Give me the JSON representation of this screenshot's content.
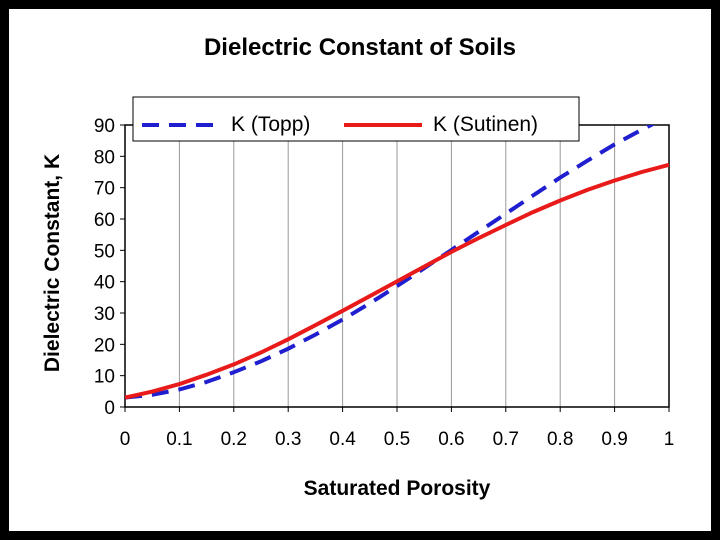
{
  "chart_data": {
    "type": "line",
    "title": "Dielectric Constant of Soils",
    "xlabel": "Saturated Porosity",
    "ylabel": "Dielectric Constant, K",
    "xlim": [
      0,
      1
    ],
    "ylim": [
      0,
      90
    ],
    "x_ticks": [
      "0",
      "0.1",
      "0.2",
      "0.3",
      "0.4",
      "0.5",
      "0.6",
      "0.7",
      "0.8",
      "0.9",
      "1"
    ],
    "y_ticks": [
      "0",
      "10",
      "20",
      "30",
      "40",
      "50",
      "60",
      "70",
      "80",
      "90"
    ],
    "grid": "vertical",
    "legend_position": "top",
    "x": [
      0,
      0.05,
      0.1,
      0.15,
      0.2,
      0.25,
      0.3,
      0.35,
      0.4,
      0.45,
      0.5,
      0.55,
      0.6,
      0.65,
      0.7,
      0.75,
      0.8,
      0.85,
      0.9,
      0.95,
      1.0
    ],
    "series": [
      {
        "name": "K (Topp)",
        "color": "#1f1fd0",
        "style": "dashed",
        "values": [
          3.0,
          3.9,
          5.6,
          8.0,
          11.1,
          14.6,
          18.6,
          23.1,
          27.9,
          33.1,
          38.6,
          44.3,
          50.1,
          55.9,
          61.7,
          67.5,
          73.2,
          78.6,
          83.8,
          88.5,
          92.9
        ]
      },
      {
        "name": "K (Sutinen)",
        "color": "#e81a1a",
        "style": "solid",
        "values": [
          3.0,
          4.9,
          7.3,
          10.3,
          13.6,
          17.4,
          21.6,
          26.1,
          30.7,
          35.4,
          40.1,
          44.8,
          49.5,
          53.9,
          58.1,
          62.2,
          65.9,
          69.3,
          72.3,
          75.0,
          77.3
        ]
      }
    ]
  }
}
